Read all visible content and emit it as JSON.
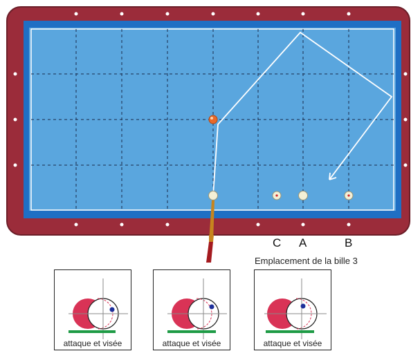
{
  "colors": {
    "rail": "#9b2c3a",
    "cushion": "#1f6fc4",
    "cloth": "#5aa6de",
    "line": "#ffffff",
    "object_ball": "#e8692a",
    "cue_ball": "#f3f0d6",
    "contact_ball": "#d93356",
    "spin_dot": "#1d2f9a",
    "base_line": "#1e9b45",
    "cue_stick": "#c7851e"
  },
  "positions": {
    "c": "C",
    "a": "A",
    "b": "B"
  },
  "caption": "Emplacement de la bille 3",
  "panels": [
    {
      "label": "attaque et visée"
    },
    {
      "label": "attaque et visée"
    },
    {
      "label": "attaque et visée"
    }
  ]
}
